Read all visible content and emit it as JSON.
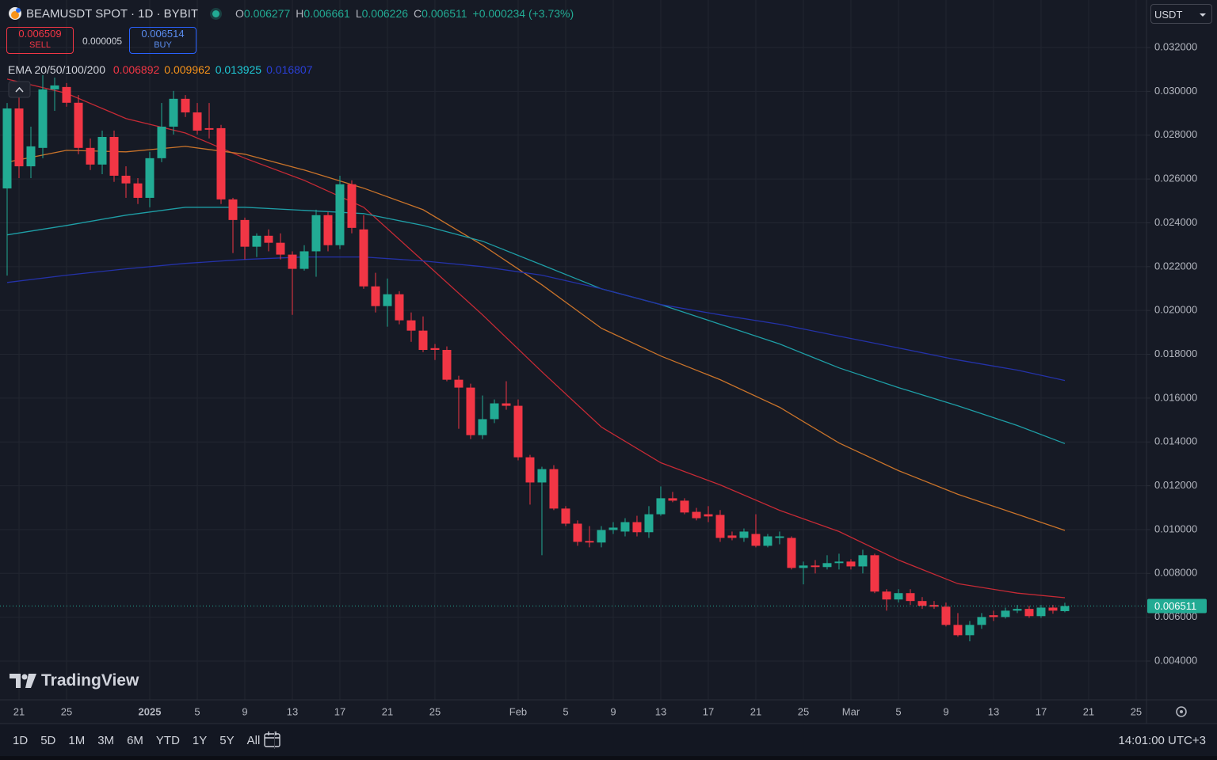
{
  "header": {
    "symbol": "BEAMUSDT SPOT · 1D · BYBIT",
    "ohlc_labels": [
      "O",
      "H",
      "L",
      "C"
    ],
    "change": "+0.000234 (+3.73%)",
    "sell_price": 0.006509,
    "sell_label": "SELL",
    "spread": 5e-06,
    "buy_price": 0.006514,
    "buy_label": "BUY",
    "indicator": "EMA 20/50/100/200",
    "currency": "USDT",
    "logo": "TradingView"
  },
  "toolbar": {
    "ranges": [
      "1D",
      "5D",
      "1M",
      "3M",
      "6M",
      "YTD",
      "1Y",
      "5Y",
      "All"
    ],
    "clock": "14:01:00 UTC+3"
  },
  "chart_data": {
    "type": "candlestick",
    "up_color": "#22ab94",
    "down_color": "#f23645",
    "grid": true,
    "open": [
      0.02557,
      0.02922,
      0.02658,
      0.02742,
      0.03009,
      0.0302,
      0.02948,
      0.02742,
      0.02666,
      0.02792,
      0.02615,
      0.0258,
      0.02514,
      0.02695,
      0.02839,
      0.02966,
      0.02904,
      0.02832,
      0.02832,
      0.02507,
      0.02413,
      0.02291,
      0.02341,
      0.02309,
      0.02255,
      0.0219,
      0.0227,
      0.02435,
      0.02298,
      0.02576,
      0.0237,
      0.0211,
      0.0202,
      0.02074,
      0.01955,
      0.01908,
      0.01828,
      0.0182,
      0.01684,
      0.01648,
      0.01431,
      0.01504,
      0.01576,
      0.01565,
      0.0133,
      0.01215,
      0.01276,
      0.01096,
      0.01027,
      0.00948,
      0.00941,
      0.00998,
      0.00991,
      0.01034,
      0.00988,
      0.0107,
      0.01143,
      0.01132,
      0.01081,
      0.0107,
      0.01067,
      0.00973,
      0.00962,
      0.0098,
      0.00926,
      0.00962,
      0.00962,
      0.00825,
      0.00836,
      0.00829,
      0.00847,
      0.00854,
      0.00832,
      0.00883,
      0.00717,
      0.00681,
      0.0071,
      0.00674,
      0.00656,
      0.00648,
      0.00565,
      0.00518,
      0.00565,
      0.00609,
      0.00601,
      0.0063,
      0.00638,
      0.00605,
      0.00644,
      0.006277
    ],
    "high": [
      0.02947,
      0.02983,
      0.02839,
      0.03074,
      0.03063,
      0.03038,
      0.02983,
      0.02785,
      0.02821,
      0.02821,
      0.02658,
      0.02604,
      0.02724,
      0.02947,
      0.03002,
      0.02983,
      0.02947,
      0.02947,
      0.02847,
      0.02514,
      0.02424,
      0.02352,
      0.0237,
      0.02352,
      0.0227,
      0.02298,
      0.0246,
      0.0245,
      0.02615,
      0.02594,
      0.02435,
      0.02172,
      0.02146,
      0.02088,
      0.01991,
      0.01973,
      0.01847,
      0.01836,
      0.01702,
      0.01666,
      0.01612,
      0.01594,
      0.01677,
      0.01594,
      0.01341,
      0.01287,
      0.01294,
      0.01107,
      0.01042,
      0.01016,
      0.01016,
      0.01034,
      0.01052,
      0.01063,
      0.01107,
      0.01197,
      0.01172,
      0.01143,
      0.01099,
      0.01107,
      0.01089,
      0.00991,
      0.01005,
      0.0107,
      0.0098,
      0.00991,
      0.00969,
      0.00854,
      0.00861,
      0.00883,
      0.0089,
      0.00865,
      0.00908,
      0.0089,
      0.00728,
      0.00728,
      0.00728,
      0.00692,
      0.00674,
      0.00667,
      0.00619,
      0.00583,
      0.00619,
      0.0063,
      0.00644,
      0.00656,
      0.00652,
      0.00656,
      0.00656,
      0.006661
    ],
    "low": [
      0.02159,
      0.02604,
      0.02604,
      0.02695,
      0.02911,
      0.0293,
      0.02713,
      0.02641,
      0.02622,
      0.02587,
      0.02514,
      0.02486,
      0.02471,
      0.02677,
      0.02803,
      0.02883,
      0.02803,
      0.02785,
      0.02486,
      0.02262,
      0.02233,
      0.02244,
      0.0227,
      0.02233,
      0.0198,
      0.02182,
      0.02154,
      0.0227,
      0.0228,
      0.02352,
      0.02099,
      0.01991,
      0.01926,
      0.01937,
      0.01857,
      0.0181,
      0.01774,
      0.01677,
      0.0146,
      0.01413,
      0.01413,
      0.01486,
      0.01547,
      0.01316,
      0.01114,
      0.00883,
      0.01089,
      0.01016,
      0.00926,
      0.00919,
      0.00919,
      0.0098,
      0.00969,
      0.00969,
      0.00962,
      0.01063,
      0.01125,
      0.0107,
      0.01042,
      0.01034,
      0.00944,
      0.00951,
      0.00944,
      0.00919,
      0.00919,
      0.00933,
      0.00818,
      0.0075,
      0.008,
      0.00818,
      0.00818,
      0.00818,
      0.008,
      0.0071,
      0.0063,
      0.00667,
      0.00656,
      0.00638,
      0.00638,
      0.00558,
      0.00511,
      0.0049,
      0.00547,
      0.00583,
      0.00594,
      0.00619,
      0.00597,
      0.00597,
      0.00616,
      0.006226
    ],
    "close": [
      0.02922,
      0.02658,
      0.02749,
      0.03009,
      0.03027,
      0.02948,
      0.02742,
      0.02666,
      0.02792,
      0.02615,
      0.0258,
      0.02514,
      0.02695,
      0.02839,
      0.02966,
      0.02904,
      0.02821,
      0.02825,
      0.02507,
      0.02413,
      0.02291,
      0.02341,
      0.02309,
      0.02255,
      0.0219,
      0.0227,
      0.02435,
      0.02298,
      0.02576,
      0.02377,
      0.0211,
      0.0202,
      0.02074,
      0.01955,
      0.01908,
      0.0182,
      0.0182,
      0.01684,
      0.01648,
      0.01431,
      0.01504,
      0.01576,
      0.01565,
      0.0133,
      0.01215,
      0.01276,
      0.01096,
      0.01027,
      0.00944,
      0.00941,
      0.00998,
      0.01009,
      0.01034,
      0.00988,
      0.0107,
      0.01143,
      0.01132,
      0.01078,
      0.01052,
      0.0106,
      0.00962,
      0.00962,
      0.00991,
      0.00926,
      0.00969,
      0.00969,
      0.00825,
      0.00836,
      0.00829,
      0.00847,
      0.00854,
      0.00832,
      0.00883,
      0.00717,
      0.00681,
      0.0071,
      0.00674,
      0.00652,
      0.00648,
      0.00565,
      0.00518,
      0.00565,
      0.00601,
      0.00601,
      0.0063,
      0.00638,
      0.00605,
      0.00644,
      0.0063,
      0.006511
    ],
    "series": [
      {
        "color": "#c62a35",
        "legend_color": "#f23645",
        "x": [
          0,
          5,
          10,
          15,
          20,
          25,
          30,
          35,
          40,
          45,
          50,
          55,
          60,
          65,
          70,
          75,
          80,
          85,
          89
        ],
        "values": [
          0.03056,
          0.02991,
          0.02876,
          0.0281,
          0.02695,
          0.02594,
          0.02471,
          0.02226,
          0.0198,
          0.0172,
          0.01468,
          0.01305,
          0.01204,
          0.01088,
          0.00991,
          0.00861,
          0.00753,
          0.0071,
          0.006892
        ]
      },
      {
        "color": "#c9732a",
        "legend_color": "#f7931a",
        "x": [
          0,
          5,
          10,
          15,
          20,
          25,
          30,
          35,
          40,
          45,
          50,
          55,
          60,
          65,
          70,
          75,
          80,
          85,
          89
        ],
        "values": [
          0.02677,
          0.02731,
          0.02724,
          0.02749,
          0.02713,
          0.02641,
          0.02558,
          0.0246,
          0.02298,
          0.02117,
          0.01919,
          0.01792,
          0.01684,
          0.01558,
          0.01395,
          0.01269,
          0.01161,
          0.0107,
          0.009962
        ]
      },
      {
        "color": "#1e9ea6",
        "legend_color": "#1fc7d4",
        "x": [
          0,
          5,
          10,
          15,
          20,
          25,
          30,
          35,
          40,
          45,
          50,
          55,
          60,
          65,
          70,
          75,
          80,
          85,
          89
        ],
        "values": [
          0.02345,
          0.02388,
          0.02435,
          0.02471,
          0.02471,
          0.02457,
          0.02442,
          0.02388,
          0.02316,
          0.02208,
          0.02099,
          0.02027,
          0.01937,
          0.01847,
          0.01738,
          0.01648,
          0.01565,
          0.01475,
          0.013925
        ]
      },
      {
        "color": "#2432a8",
        "legend_color": "#2a3fd6",
        "x": [
          0,
          5,
          10,
          15,
          20,
          25,
          30,
          35,
          40,
          45,
          50,
          55,
          60,
          65,
          70,
          75,
          80,
          85,
          89
        ],
        "values": [
          0.02128,
          0.02161,
          0.0219,
          0.02215,
          0.02233,
          0.02244,
          0.02244,
          0.02226,
          0.022,
          0.02161,
          0.02099,
          0.02027,
          0.0198,
          0.01937,
          0.01883,
          0.01829,
          0.01774,
          0.01728,
          0.016807
        ]
      }
    ],
    "xlim": [
      -0.6,
      95.87
    ],
    "xticks": [
      {
        "value": 1,
        "label": "21"
      },
      {
        "value": 5,
        "label": "25"
      },
      {
        "value": 12,
        "label": "2025"
      },
      {
        "value": 16,
        "label": "5"
      },
      {
        "value": 20,
        "label": "9"
      },
      {
        "value": 24,
        "label": "13"
      },
      {
        "value": 28,
        "label": "17"
      },
      {
        "value": 32,
        "label": "21"
      },
      {
        "value": 36,
        "label": "25"
      },
      {
        "value": 43,
        "label": "Feb"
      },
      {
        "value": 47,
        "label": "5"
      },
      {
        "value": 51,
        "label": "9"
      },
      {
        "value": 55,
        "label": "13"
      },
      {
        "value": 59,
        "label": "17"
      },
      {
        "value": 63,
        "label": "21"
      },
      {
        "value": 67,
        "label": "25"
      },
      {
        "value": 71,
        "label": "Mar"
      },
      {
        "value": 75,
        "label": "5"
      },
      {
        "value": 79,
        "label": "9"
      },
      {
        "value": 83,
        "label": "13"
      },
      {
        "value": 87,
        "label": "17"
      },
      {
        "value": 91,
        "label": "21"
      },
      {
        "value": 95,
        "label": "25"
      }
    ],
    "ylim": [
      0.00223,
      0.03417
    ],
    "yticks": [
      {
        "value": 0.004,
        "label": "0.004000"
      },
      {
        "value": 0.006,
        "label": "0.006000"
      },
      {
        "value": 0.008,
        "label": "0.008000"
      },
      {
        "value": 0.01,
        "label": "0.010000"
      },
      {
        "value": 0.012,
        "label": "0.012000"
      },
      {
        "value": 0.014,
        "label": "0.014000"
      },
      {
        "value": 0.016,
        "label": "0.016000"
      },
      {
        "value": 0.018,
        "label": "0.018000"
      },
      {
        "value": 0.02,
        "label": "0.020000"
      },
      {
        "value": 0.022,
        "label": "0.022000"
      },
      {
        "value": 0.024,
        "label": "0.024000"
      },
      {
        "value": 0.026,
        "label": "0.026000"
      },
      {
        "value": 0.028,
        "label": "0.028000"
      },
      {
        "value": 0.03,
        "label": "0.030000"
      },
      {
        "value": 0.032,
        "label": "0.032000"
      }
    ]
  }
}
